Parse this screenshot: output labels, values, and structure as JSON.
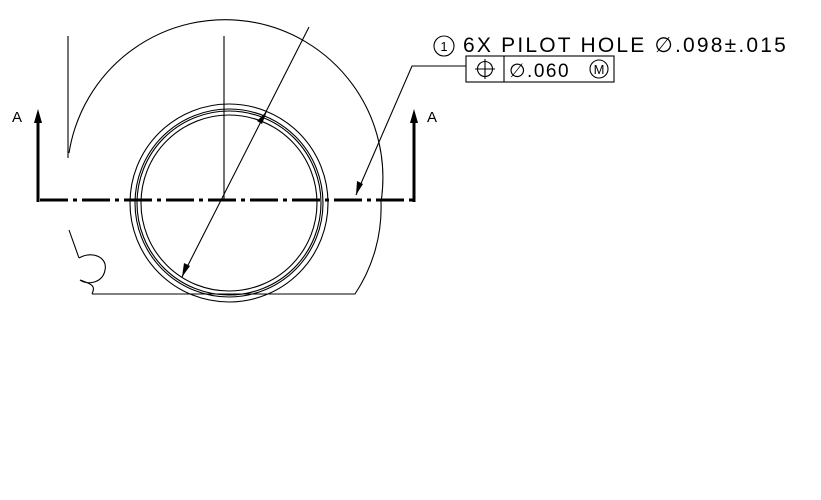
{
  "section": {
    "left_label": "A",
    "right_label": "A"
  },
  "callout": {
    "balloon_number": "1",
    "note_text": "6X PILOT HOLE ∅.098±.015"
  },
  "feature_control_frame": {
    "symbol_name": "position-icon",
    "tolerance_text": "∅.060",
    "modifier_text": "M"
  }
}
